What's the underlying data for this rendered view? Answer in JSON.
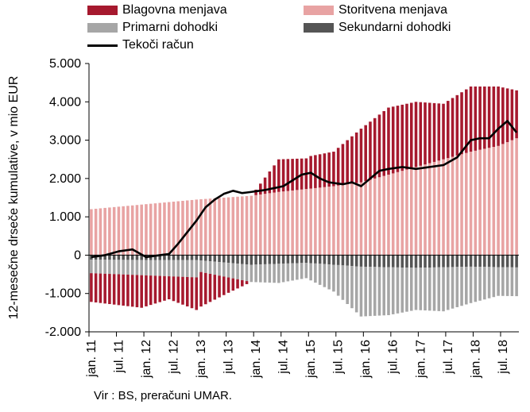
{
  "chart_data": {
    "type": "bar",
    "ylabel": "12-mesečne drseče kumulative, v mio EUR",
    "yticks": [
      "5.000",
      "4.000",
      "3.000",
      "2.000",
      "1.000",
      "0",
      "-1.000",
      "-2.000"
    ],
    "ylim": [
      -2000,
      5000
    ],
    "xtick_labels": [
      "jan. 11",
      "jul. 11",
      "jan. 12",
      "jul. 12",
      "jan. 13",
      "jul. 13",
      "jan. 14",
      "jul. 14",
      "jan. 15",
      "jul. 15",
      "jan. 16",
      "jul. 16",
      "jan. 17",
      "jul. 17",
      "jan. 18",
      "jul. 18"
    ],
    "series_names": [
      "Blagovna menjava",
      "Storitvena menjava",
      "Primarni dohodki",
      "Sekundarni dohodki",
      "Tekoči račun"
    ],
    "colors": {
      "blagovna": "#a6192e",
      "storitvena": "#e8a3a3",
      "primarni": "#a6a6a6",
      "sekundarni": "#555555",
      "tekoci": "#000000"
    },
    "months": 94,
    "keys": {
      "blagovna_m": [
        0,
        11,
        17,
        23,
        24,
        30,
        35,
        41,
        47,
        48,
        53,
        59,
        65,
        71,
        77,
        83,
        89,
        93
      ],
      "blagovna_v": [
        -750,
        -850,
        -600,
        -850,
        -900,
        -400,
        0,
        850,
        800,
        850,
        900,
        1400,
        1750,
        1700,
        1450,
        1700,
        1550,
        1250
      ],
      "storitvena_m": [
        0,
        23,
        35,
        41,
        53,
        59,
        65,
        71,
        77,
        83,
        89,
        93
      ],
      "storitvena_v": [
        1200,
        1450,
        1550,
        1650,
        1800,
        1900,
        2100,
        2300,
        2500,
        2700,
        2850,
        3050
      ],
      "primarni_m": [
        0,
        23,
        24,
        35,
        41,
        47,
        53,
        59,
        65,
        71,
        77,
        83,
        89,
        93
      ],
      "primarni_v": [
        -350,
        -450,
        -300,
        -450,
        -500,
        -400,
        -700,
        -1300,
        -1250,
        -1100,
        -1150,
        -950,
        -750,
        -750
      ],
      "sekundarni_m": [
        0,
        23,
        35,
        47,
        59,
        71,
        83,
        93
      ],
      "sekundarni_v": [
        -120,
        -130,
        -250,
        -200,
        -300,
        -330,
        -300,
        -320
      ],
      "tekoci_m": [
        0,
        3,
        6,
        9,
        12,
        15,
        17,
        19,
        21,
        23,
        25,
        27,
        29,
        31,
        33,
        35,
        38,
        40,
        42,
        44,
        46,
        48,
        50,
        52,
        55,
        57,
        59,
        61,
        63,
        65,
        68,
        71,
        74,
        77,
        80,
        83,
        85,
        87,
        89,
        91,
        93
      ],
      "tekoci_v": [
        -50,
        0,
        100,
        150,
        -50,
        0,
        30,
        300,
        600,
        900,
        1250,
        1450,
        1600,
        1680,
        1620,
        1650,
        1700,
        1750,
        1800,
        1950,
        2100,
        2150,
        2000,
        1900,
        1850,
        1900,
        1800,
        2000,
        2200,
        2250,
        2300,
        2250,
        2300,
        2350,
        2550,
        3000,
        3050,
        3050,
        3300,
        3500,
        3200
      ]
    }
  },
  "source": "Vir : BS, preračuni  UMAR."
}
